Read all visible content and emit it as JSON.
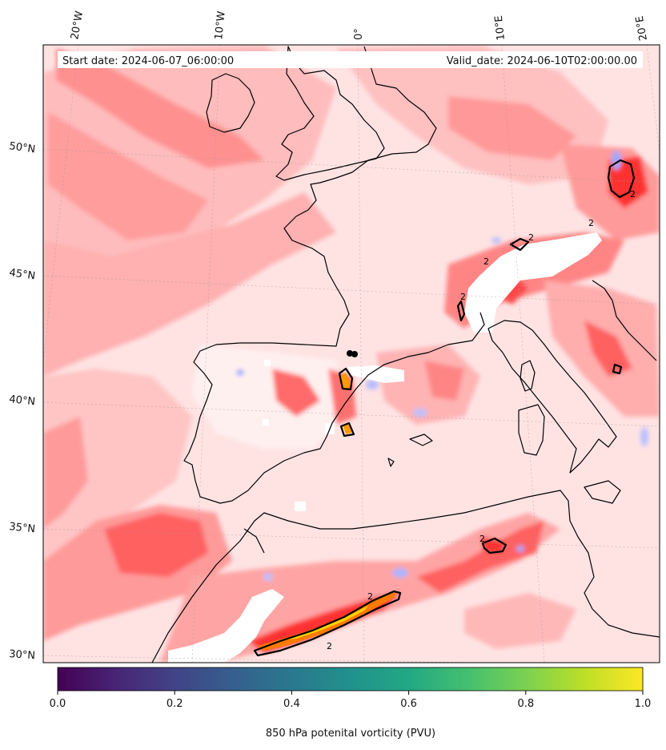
{
  "header": {
    "start_date": "Start date: 2024-06-07_06:00:00",
    "valid_date": "Valid_date: 2024-06-10T02:00:00.00"
  },
  "axes": {
    "lon_labels": [
      "20°W",
      "10°W",
      "0°",
      "10°E",
      "20°E"
    ],
    "lat_labels": [
      "50°N",
      "45°N",
      "40°N",
      "35°N",
      "30°N"
    ]
  },
  "contour_label": "2",
  "colorbar": {
    "label": "850 hPa potenital vorticity (PVU)",
    "colormap": "viridis",
    "range": [
      0.0,
      1.0
    ],
    "ticks": [
      "0.0",
      "0.2",
      "0.4",
      "0.6",
      "0.8",
      "1.0"
    ]
  },
  "colors": {
    "field_light": "#ffe3e3",
    "field_mid": "#ffbcbc",
    "field_strong": "#ff8080",
    "field_max": "#ff2a2a",
    "negative": "#c8d0ff",
    "high_core": "#ffd200",
    "missing": "#ffffff",
    "coast": "#000000"
  }
}
